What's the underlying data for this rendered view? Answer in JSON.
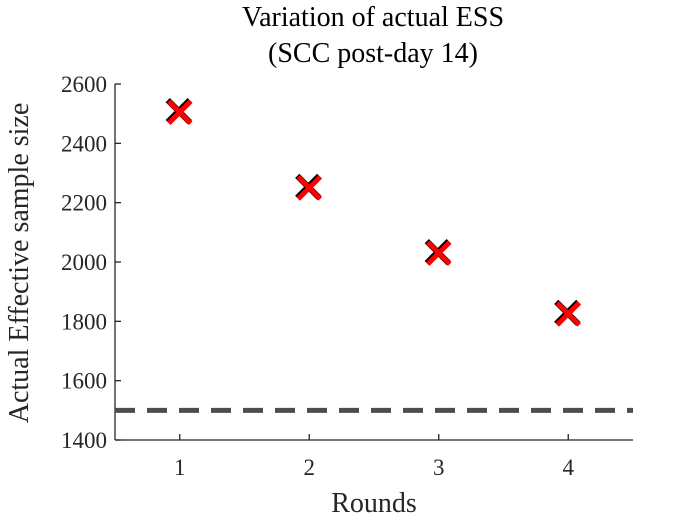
{
  "chart_data": {
    "type": "scatter",
    "title": [
      "Variation of actual ESS",
      "(SCC post-day 14)"
    ],
    "xlabel": "Rounds",
    "ylabel": "Actual Effective sample size",
    "xlim": [
      0.5,
      4.5
    ],
    "ylim": [
      1400,
      2600
    ],
    "xticks": [
      1,
      2,
      3,
      4
    ],
    "xtick_labels": [
      "1",
      "2",
      "3",
      "4"
    ],
    "yticks": [
      1400,
      1600,
      1800,
      2000,
      2200,
      2400,
      2600
    ],
    "ytick_labels": [
      "1400",
      "1600",
      "1800",
      "2000",
      "2200",
      "2400",
      "2600"
    ],
    "grid": false,
    "series": [
      {
        "marker": "x",
        "color": "#ff0000",
        "shadow_color": "#000000",
        "x": [
          1,
          2,
          3,
          4
        ],
        "y": [
          2505,
          2250,
          2030,
          1825
        ]
      }
    ],
    "reference_line": {
      "y": 1500,
      "style": "dashed",
      "color": "#4d4d4d"
    }
  }
}
